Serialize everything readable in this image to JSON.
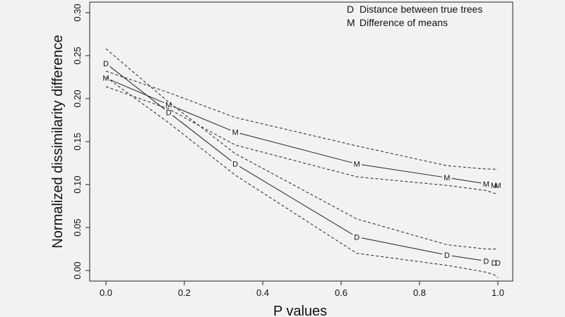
{
  "chart_data": {
    "type": "line",
    "title": "",
    "xlabel": "P values",
    "ylabel": "Normalized dissimilarity difference",
    "xlim": [
      0.0,
      1.0
    ],
    "ylim": [
      0.0,
      0.3
    ],
    "xticks": [
      "0.0",
      "0.2",
      "0.4",
      "0.6",
      "0.8",
      "1.0"
    ],
    "yticks": [
      "0.00",
      "0.05",
      "0.10",
      "0.15",
      "0.20",
      "0.25",
      "0.30"
    ],
    "grid": false,
    "legend_position": "top-right",
    "legend": [
      {
        "symbol": "D",
        "label": "Distance between true trees"
      },
      {
        "symbol": "M",
        "label": "Difference of means"
      }
    ],
    "series": [
      {
        "symbol": "D",
        "x": [
          0.0,
          0.16,
          0.33,
          0.64,
          0.87,
          0.97,
          0.99,
          1.0
        ],
        "y": [
          0.241,
          0.184,
          0.124,
          0.039,
          0.018,
          0.011,
          0.009,
          0.009
        ],
        "upper": [
          0.258,
          0.196,
          0.136,
          0.06,
          0.03,
          0.025,
          0.025,
          0.025
        ],
        "lower": [
          0.225,
          0.172,
          0.111,
          0.02,
          0.006,
          -0.002,
          -0.005,
          -0.008
        ]
      },
      {
        "symbol": "M",
        "x": [
          0.0,
          0.16,
          0.33,
          0.64,
          0.87,
          0.97,
          0.99,
          1.0
        ],
        "y": [
          0.224,
          0.193,
          0.161,
          0.124,
          0.108,
          0.101,
          0.099,
          0.099
        ],
        "upper": [
          0.232,
          0.207,
          0.178,
          0.145,
          0.122,
          0.118,
          0.118,
          0.117
        ],
        "lower": [
          0.214,
          0.188,
          0.146,
          0.109,
          0.099,
          0.093,
          0.09,
          0.089
        ]
      }
    ]
  }
}
